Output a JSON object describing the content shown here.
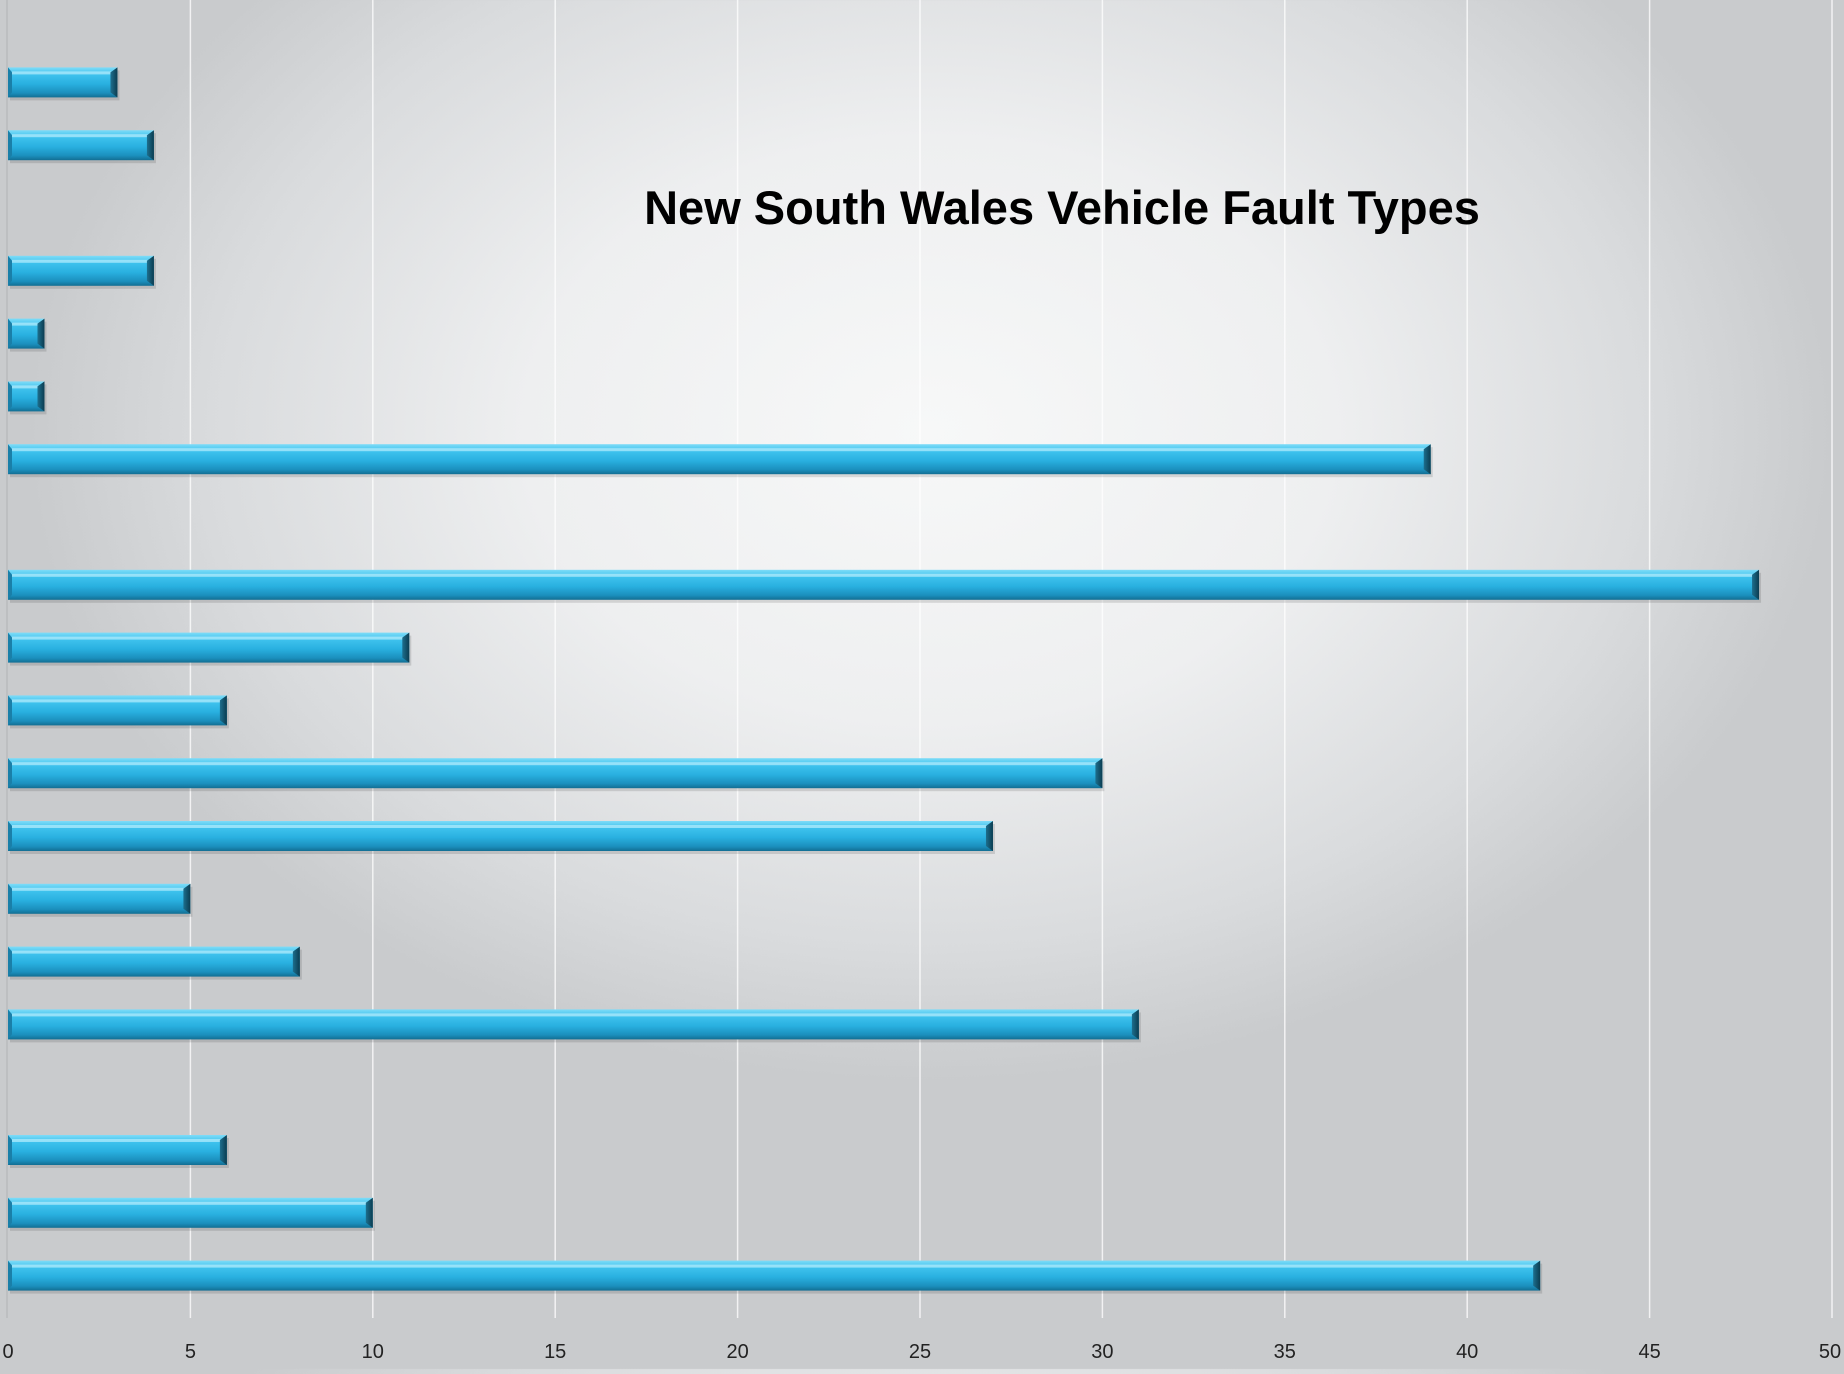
{
  "chart_data": {
    "type": "bar",
    "orientation": "horizontal",
    "title": "New South Wales Vehicle Fault Types",
    "xlabel": "",
    "ylabel": "",
    "xlim": [
      0,
      50
    ],
    "x_ticks": [
      "0",
      "5",
      "10",
      "15",
      "20",
      "25",
      "30",
      "35",
      "40",
      "45",
      "50"
    ],
    "grid": "vertical",
    "legend": "none",
    "bar_color": "#29b6e6",
    "categories": [
      "",
      "",
      "",
      "",
      "",
      "",
      "",
      "",
      "",
      "",
      "",
      "",
      "",
      "",
      "",
      "",
      "",
      "",
      "",
      ""
    ],
    "values": [
      3,
      4,
      null,
      4,
      1,
      1,
      39,
      null,
      48,
      11,
      6,
      30,
      27,
      5,
      8,
      31,
      null,
      6,
      10,
      42
    ]
  }
}
